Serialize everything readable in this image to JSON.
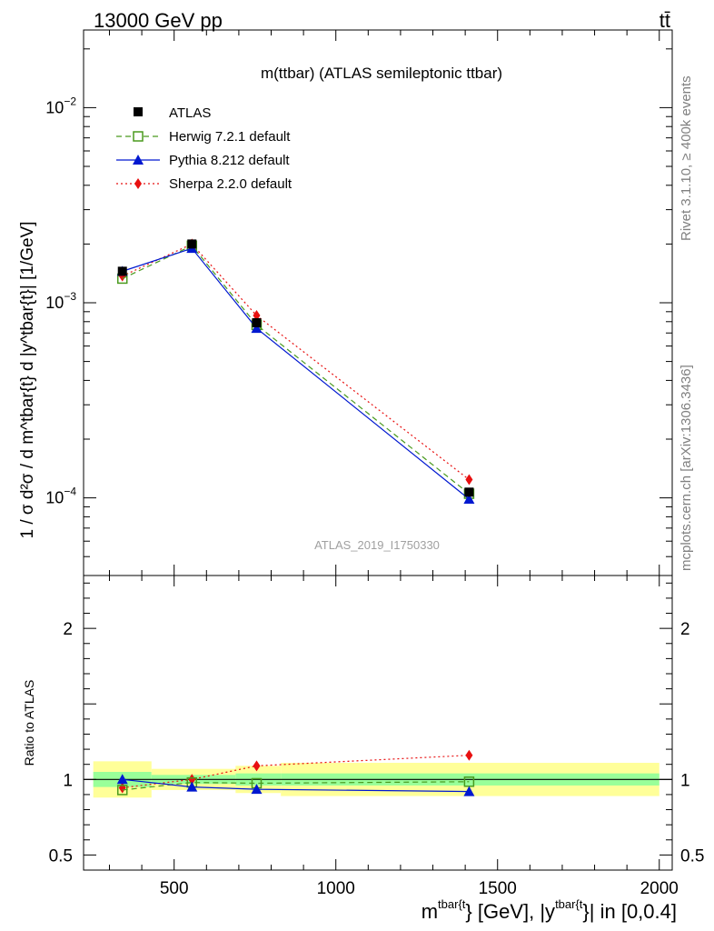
{
  "header": {
    "left": "13000 GeV pp",
    "right": "tt̄"
  },
  "side_labels": {
    "rivet": "Rivet 3.1.10, ≥ 400k events",
    "mcplots": "mcplots.cern.ch [arXiv:1306.3436]"
  },
  "watermark": "ATLAS_2019_I1750330",
  "chart_data": {
    "type": "line",
    "title": "m(ttbar) (ATLAS semileptonic ttbar)",
    "xlabel_main": "m",
    "xlabel_sup1": "tbar{t",
    "xlabel_mid": "} [GeV], |y",
    "xlabel_sup2": "tbar{t",
    "xlabel_end": "}| in [0,0.4]",
    "ylabel": "1 / σ d²σ / d m^tbar{t} d |y^tbar{t}| [1/GeV]",
    "ratio_ylabel": "Ratio to ATLAS",
    "xlim": [
      220,
      2040
    ],
    "ylim": [
      4e-05,
      0.025
    ],
    "ratio_ylim": [
      0.4,
      2.35
    ],
    "x_ticks": [
      "500",
      "1000",
      "1500",
      "2000"
    ],
    "y_ticks": [
      {
        "base": "10",
        "exp": "−2"
      },
      {
        "base": "10",
        "exp": "−3"
      },
      {
        "base": "10",
        "exp": "−4"
      }
    ],
    "ratio_ticks": [
      "0.5",
      "1",
      "2"
    ],
    "bins": [
      [
        250,
        430
      ],
      [
        430,
        690
      ],
      [
        690,
        830
      ],
      [
        830,
        2000
      ]
    ],
    "x": [
      340,
      555,
      755,
      1412
    ],
    "series": [
      {
        "name": "ATLAS",
        "values": [
          0.00145,
          0.002,
          0.00079,
          0.000107
        ],
        "color": "#000000",
        "marker": "square"
      },
      {
        "name": "Herwig 7.2.1 default",
        "values": [
          0.00133,
          0.00196,
          0.00077,
          0.000105
        ],
        "color": "#4a9a1e",
        "marker": "open-square",
        "dash": "6,4"
      },
      {
        "name": "Pythia 8.212 default",
        "values": [
          0.00145,
          0.0019,
          0.00074,
          9.85e-05
        ],
        "color": "#0018d0",
        "marker": "triangle"
      },
      {
        "name": "Sherpa 2.2.0 default",
        "values": [
          0.00137,
          0.002,
          0.00086,
          0.000124
        ],
        "color": "#e81010",
        "marker": "diamond",
        "dash": "2,3"
      }
    ],
    "ratio_series": [
      {
        "name": "Herwig 7.2.1 default",
        "values": [
          0.93,
          0.98,
          0.975,
          0.985
        ]
      },
      {
        "name": "Pythia 8.212 default",
        "values": [
          1.0,
          0.95,
          0.935,
          0.92
        ]
      },
      {
        "name": "Sherpa 2.2.0 default",
        "values": [
          0.945,
          1.0,
          1.09,
          1.16
        ]
      }
    ],
    "band_inner": [
      0.05,
      0.03,
      0.04,
      0.04
    ],
    "band_outer": [
      0.12,
      0.07,
      0.09,
      0.11
    ]
  }
}
